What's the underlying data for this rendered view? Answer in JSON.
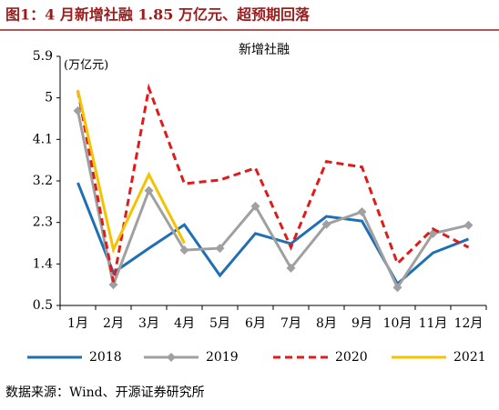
{
  "header": {
    "title": "图1：4 月新增社融 1.85 万亿元、超预期回落"
  },
  "chart_data": {
    "type": "line",
    "title": "新增社融",
    "y_label": "(万亿元)",
    "categories": [
      "1月",
      "2月",
      "3月",
      "4月",
      "5月",
      "6月",
      "7月",
      "8月",
      "9月",
      "10月",
      "11月",
      "12月"
    ],
    "ylim": [
      0.5,
      5.9
    ],
    "yticks": [
      0.5,
      1.4,
      2.3,
      3.2,
      4.1,
      5.0,
      5.9
    ],
    "series": [
      {
        "name": "2018",
        "color": "#1f6fb4",
        "dash": false,
        "marker": false,
        "values": [
          3.16,
          1.21,
          1.74,
          2.25,
          1.15,
          2.06,
          1.84,
          2.43,
          2.33,
          0.97,
          1.64,
          1.94
        ]
      },
      {
        "name": "2019",
        "color": "#a0a0a0",
        "dash": false,
        "marker": true,
        "values": [
          4.72,
          0.95,
          2.99,
          1.7,
          1.74,
          2.65,
          1.31,
          2.26,
          2.53,
          0.89,
          2.06,
          2.24
        ]
      },
      {
        "name": "2020",
        "color": "#e01b1b",
        "dash": true,
        "marker": false,
        "values": [
          5.16,
          1.01,
          5.21,
          3.14,
          3.22,
          3.48,
          1.76,
          3.62,
          3.5,
          1.41,
          2.16,
          1.76
        ]
      },
      {
        "name": "2021",
        "color": "#f5c200",
        "dash": false,
        "marker": false,
        "values": [
          5.17,
          1.71,
          3.34,
          1.85,
          null,
          null,
          null,
          null,
          null,
          null,
          null,
          null
        ]
      }
    ]
  },
  "source": "数据来源：Wind、开源证券研究所"
}
